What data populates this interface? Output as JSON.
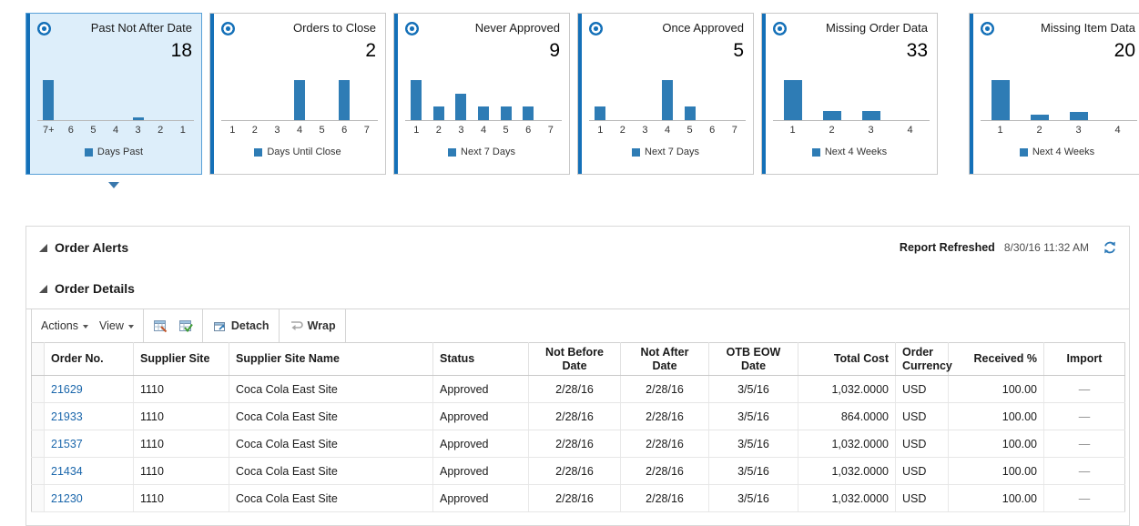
{
  "tiles": [
    {
      "title": "Past Not After Date",
      "count": "18",
      "selected": true,
      "categories": [
        "7+",
        "6",
        "5",
        "4",
        "3",
        "2",
        "1"
      ],
      "values": [
        17,
        0,
        0,
        0,
        1,
        0,
        0
      ],
      "legend": "Days Past"
    },
    {
      "title": "Orders to Close",
      "count": "2",
      "selected": false,
      "categories": [
        "1",
        "2",
        "3",
        "4",
        "5",
        "6",
        "7"
      ],
      "values": [
        0,
        0,
        0,
        1,
        0,
        1,
        0
      ],
      "legend": "Days Until Close"
    },
    {
      "title": "Never Approved",
      "count": "9",
      "selected": false,
      "categories": [
        "1",
        "2",
        "3",
        "4",
        "5",
        "6",
        "7"
      ],
      "values": [
        3,
        1,
        2,
        1,
        1,
        1,
        0
      ],
      "legend": "Next 7 Days"
    },
    {
      "title": "Once Approved",
      "count": "5",
      "selected": false,
      "categories": [
        "1",
        "2",
        "3",
        "4",
        "5",
        "6",
        "7"
      ],
      "values": [
        1,
        0,
        0,
        3,
        1,
        0,
        0
      ],
      "legend": "Next 7 Days"
    },
    {
      "title": "Missing Order Data",
      "count": "33",
      "selected": false,
      "categories": [
        "1",
        "2",
        "3",
        "4"
      ],
      "values": [
        23,
        5,
        5,
        0
      ],
      "legend": "Next 4 Weeks"
    },
    {
      "title": "Missing Item Data",
      "count": "20",
      "selected": false,
      "categories": [
        "1",
        "2",
        "3",
        "4"
      ],
      "values": [
        15,
        2,
        3,
        0
      ],
      "legend": "Next 4 Weeks"
    }
  ],
  "alerts_panel": {
    "title": "Order Alerts",
    "refreshed_label": "Report Refreshed",
    "refreshed_time": "8/30/16 11:32 AM",
    "details_title": "Order Details",
    "toolbar": {
      "actions": "Actions",
      "view": "View",
      "detach": "Detach",
      "wrap": "Wrap"
    },
    "table": {
      "columns": [
        "Order No.",
        "Supplier Site",
        "Supplier Site Name",
        "Status",
        "Not Before Date",
        "Not After Date",
        "OTB EOW Date",
        "Total Cost",
        "Order Currency",
        "Received %",
        "Import"
      ],
      "rows": [
        [
          "21629",
          "1110",
          "Coca Cola East Site",
          "Approved",
          "2/28/16",
          "2/28/16",
          "3/5/16",
          "1,032.0000",
          "USD",
          "100.00",
          "—"
        ],
        [
          "21933",
          "1110",
          "Coca Cola East Site",
          "Approved",
          "2/28/16",
          "2/28/16",
          "3/5/16",
          "864.0000",
          "USD",
          "100.00",
          "—"
        ],
        [
          "21537",
          "1110",
          "Coca Cola East Site",
          "Approved",
          "2/28/16",
          "2/28/16",
          "3/5/16",
          "1,032.0000",
          "USD",
          "100.00",
          "—"
        ],
        [
          "21434",
          "1110",
          "Coca Cola East Site",
          "Approved",
          "2/28/16",
          "2/28/16",
          "3/5/16",
          "1,032.0000",
          "USD",
          "100.00",
          "—"
        ],
        [
          "21230",
          "1110",
          "Coca Cola East Site",
          "Approved",
          "2/28/16",
          "2/28/16",
          "3/5/16",
          "1,032.0000",
          "USD",
          "100.00",
          "—"
        ]
      ]
    }
  },
  "colors": {
    "accent_blue": "#1470b8",
    "bar_blue": "#2e7cb5",
    "selected_tile_bg": "#ddeefa",
    "selected_tile_border": "#58a0d7",
    "link_blue": "#1a66ab"
  }
}
